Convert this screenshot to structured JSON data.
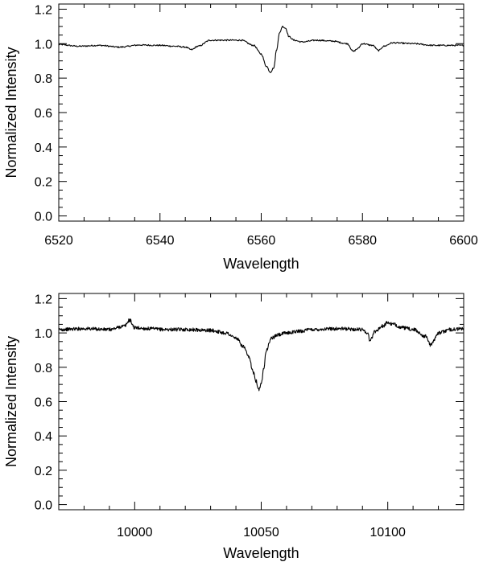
{
  "chart_data": [
    {
      "type": "line",
      "xlabel": "Wavelength",
      "ylabel": "Normalized Intensity",
      "xlim": [
        6520,
        6600
      ],
      "ylim": [
        -0.03,
        1.23
      ],
      "xticks": [
        6520,
        6540,
        6560,
        6580,
        6600
      ],
      "xtick_labels": [
        "6520",
        "6540",
        "6560",
        "6580",
        "6600"
      ],
      "yticks": [
        0.0,
        0.2,
        0.4,
        0.6,
        0.8,
        1.0,
        1.2
      ],
      "ytick_labels": [
        "0.0",
        "0.2",
        "0.4",
        "0.6",
        "0.8",
        "1.0",
        "1.2"
      ],
      "x_minor_step": 5,
      "y_minor_step": 0.05,
      "series": [
        {
          "x": [
            6520,
            6524,
            6528,
            6532,
            6536,
            6540,
            6543,
            6545,
            6546.2,
            6547.5,
            6550,
            6553,
            6556,
            6558.5,
            6560,
            6561,
            6561.8,
            6562.5,
            6563,
            6563.6,
            6564.2,
            6564.8,
            6565.5,
            6566.5,
            6568,
            6571,
            6574,
            6577,
            6578.2,
            6579,
            6580,
            6582,
            6583.2,
            6584.2,
            6586,
            6590,
            6594,
            6598,
            6600
          ],
          "y": [
            0.995,
            0.985,
            0.99,
            0.98,
            0.992,
            0.99,
            0.985,
            0.98,
            0.965,
            0.985,
            1.02,
            1.02,
            1.02,
            0.99,
            0.94,
            0.87,
            0.835,
            0.86,
            0.96,
            1.06,
            1.1,
            1.09,
            1.04,
            1.02,
            1.01,
            1.02,
            1.015,
            1.0,
            0.955,
            0.97,
            1.0,
            0.99,
            0.96,
            0.985,
            1.005,
            1.0,
            0.99,
            0.99,
            0.99
          ]
        }
      ]
    },
    {
      "type": "line",
      "xlabel": "Wavelength",
      "ylabel": "Normalized Intensity",
      "xlim": [
        9970,
        10130
      ],
      "ylim": [
        -0.03,
        1.23
      ],
      "xticks": [
        10000,
        10050,
        10100
      ],
      "xtick_labels": [
        "10000",
        "10050",
        "10100"
      ],
      "yticks": [
        0.0,
        0.2,
        0.4,
        0.6,
        0.8,
        1.0,
        1.2
      ],
      "ytick_labels": [
        "0.0",
        "0.2",
        "0.4",
        "0.6",
        "0.8",
        "1.0",
        "1.2"
      ],
      "x_minor_step": 10,
      "y_minor_step": 0.05,
      "series": [
        {
          "x": [
            9970,
            9980,
            9990,
            9996,
            9998,
            10000,
            10005,
            10012,
            10020,
            10030,
            10036,
            10040,
            10043,
            10045,
            10047,
            10048,
            10049,
            10050,
            10051,
            10052,
            10054,
            10057,
            10060,
            10065,
            10070,
            10080,
            10090,
            10092,
            10093,
            10095,
            10098,
            10100,
            10102,
            10106,
            10110,
            10115,
            10117,
            10120,
            10125,
            10130
          ],
          "y": [
            1.02,
            1.025,
            1.02,
            1.04,
            1.075,
            1.03,
            1.025,
            1.02,
            1.02,
            1.015,
            1.0,
            0.97,
            0.92,
            0.86,
            0.77,
            0.72,
            0.67,
            0.7,
            0.8,
            0.9,
            0.97,
            0.99,
            1.0,
            1.01,
            1.02,
            1.025,
            1.02,
            1.0,
            0.955,
            1.01,
            1.04,
            1.06,
            1.05,
            1.03,
            1.02,
            0.98,
            0.93,
            1.0,
            1.02,
            1.025
          ]
        }
      ]
    }
  ]
}
